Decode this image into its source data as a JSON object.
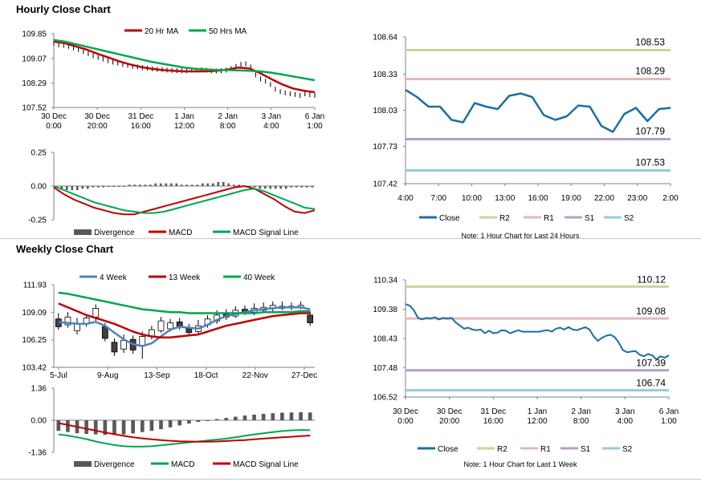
{
  "sections": {
    "hourly_title": "Hourly Close Chart",
    "weekly_title": "Weekly Close Chart"
  },
  "colors": {
    "ma_red": "#c00000",
    "ma_green": "#00a650",
    "ma_blue": "#4f81bd",
    "close_blue": "#1a6fa3",
    "r2": "#c4d79b",
    "r1": "#e6b8b7",
    "s1": "#b1a0c7",
    "s2": "#92cddc",
    "divergence": "#595959"
  },
  "chart_data": [
    {
      "id": "hourly_price",
      "type": "line",
      "title": "",
      "legend": [
        "20 Hr MA",
        "50 Hrs MA"
      ],
      "legend_colors": [
        "#c00000",
        "#00a650"
      ],
      "y_ticks": [
        "109.85",
        "109.07",
        "108.29",
        "107.52"
      ],
      "ylim": [
        107.52,
        109.85
      ],
      "x_ticks": [
        [
          "30 Dec",
          "0:00"
        ],
        [
          "30 Dec",
          "20:00"
        ],
        [
          "31 Dec",
          "16:00"
        ],
        [
          "1 Jan",
          "12:00"
        ],
        [
          "2 Jan",
          "8:00"
        ],
        [
          "3 Jan",
          "4:00"
        ],
        [
          "6 Jan",
          "1:00"
        ]
      ],
      "ohlc_close": [
        109.55,
        109.5,
        109.48,
        109.45,
        109.4,
        109.35,
        109.28,
        109.22,
        109.15,
        109.1,
        109.05,
        109.0,
        108.95,
        108.92,
        108.88,
        108.85,
        108.82,
        108.8,
        108.78,
        108.76,
        108.74,
        108.72,
        108.72,
        108.7,
        108.69,
        108.68,
        108.68,
        108.68,
        108.7,
        108.7,
        108.71,
        108.7,
        108.68,
        108.67,
        108.68,
        108.7,
        108.75,
        108.82,
        108.88,
        108.9,
        108.8,
        108.55,
        108.42,
        108.35,
        108.25,
        108.1,
        108.02,
        107.98,
        107.95,
        107.93,
        107.9,
        107.95,
        107.92,
        107.9
      ],
      "series": [
        {
          "name": "20 Hr MA",
          "values": [
            109.6,
            109.55,
            109.45,
            109.35,
            109.22,
            109.1,
            108.98,
            108.88,
            108.8,
            108.74,
            108.7,
            108.68,
            108.66,
            108.66,
            108.66,
            108.68,
            108.72,
            108.78,
            108.75,
            108.6,
            108.42,
            108.25,
            108.12,
            108.05,
            108.0
          ]
        },
        {
          "name": "50 Hrs MA",
          "values": [
            109.65,
            109.6,
            109.52,
            109.44,
            109.36,
            109.28,
            109.2,
            109.12,
            109.04,
            108.96,
            108.9,
            108.84,
            108.78,
            108.74,
            108.72,
            108.7,
            108.7,
            108.69,
            108.68,
            108.66,
            108.62,
            108.56,
            108.5,
            108.44,
            108.38
          ]
        }
      ]
    },
    {
      "id": "hourly_macd",
      "type": "bar",
      "legend": [
        "Divergence",
        "MACD",
        "MACD Signal Line"
      ],
      "legend_colors": [
        "#595959",
        "#c00000",
        "#00a650"
      ],
      "y_ticks": [
        "0.25",
        "0.00",
        "-0.25"
      ],
      "ylim": [
        -0.25,
        0.25
      ],
      "divergence": [
        0.0,
        -0.02,
        -0.03,
        -0.03,
        -0.03,
        -0.02,
        -0.02,
        -0.01,
        -0.01,
        -0.01,
        0.0,
        0.0,
        0.0,
        0.0,
        0.01,
        0.01,
        0.01,
        0.01,
        0.01,
        0.02,
        0.02,
        0.02,
        0.02,
        0.02,
        0.01,
        0.01,
        0.01,
        0.01,
        0.02,
        0.02,
        0.02,
        0.03,
        0.03,
        0.02,
        0.01,
        0.01,
        0.0,
        -0.01,
        -0.01,
        -0.02,
        -0.02,
        -0.02,
        -0.02,
        -0.02,
        -0.02,
        -0.01,
        -0.01,
        -0.01,
        -0.01,
        -0.01
      ],
      "series": [
        {
          "name": "MACD",
          "values": [
            -0.01,
            -0.06,
            -0.1,
            -0.13,
            -0.16,
            -0.18,
            -0.2,
            -0.21,
            -0.21,
            -0.19,
            -0.17,
            -0.15,
            -0.13,
            -0.11,
            -0.09,
            -0.07,
            -0.05,
            -0.03,
            -0.01,
            0.0,
            -0.02,
            -0.06,
            -0.1,
            -0.15,
            -0.19,
            -0.2,
            -0.18
          ]
        },
        {
          "name": "MACD Signal Line",
          "values": [
            0.0,
            -0.03,
            -0.06,
            -0.09,
            -0.12,
            -0.14,
            -0.16,
            -0.18,
            -0.19,
            -0.2,
            -0.2,
            -0.19,
            -0.17,
            -0.15,
            -0.13,
            -0.11,
            -0.09,
            -0.07,
            -0.05,
            -0.03,
            -0.02,
            -0.04,
            -0.07,
            -0.1,
            -0.13,
            -0.16,
            -0.17
          ]
        }
      ]
    },
    {
      "id": "hourly_24h",
      "type": "line",
      "y_ticks": [
        "108.64",
        "108.33",
        "108.03",
        "107.73",
        "107.42"
      ],
      "ylim": [
        107.42,
        108.64
      ],
      "x_ticks": [
        "4:00",
        "7:00",
        "10:00",
        "13:00",
        "16:00",
        "19:00",
        "22:00",
        "23:00",
        "2:00"
      ],
      "levels": [
        {
          "name": "R2",
          "value": 108.53,
          "label": "108.53"
        },
        {
          "name": "R1",
          "value": 108.29,
          "label": "108.29"
        },
        {
          "name": "S1",
          "value": 107.79,
          "label": "107.79"
        },
        {
          "name": "S2",
          "value": 107.53,
          "label": "107.53"
        }
      ],
      "series": [
        {
          "name": "Close",
          "values": [
            108.2,
            108.14,
            108.06,
            108.06,
            107.95,
            107.93,
            108.09,
            108.06,
            108.04,
            108.15,
            108.17,
            108.14,
            107.99,
            107.95,
            107.98,
            108.07,
            108.06,
            107.9,
            107.85,
            108.0,
            108.05,
            107.94,
            108.04,
            108.05
          ]
        }
      ],
      "legend": [
        "Close",
        "R2",
        "R1",
        "S1",
        "S2"
      ],
      "note": "Note: 1 Hour Chart for Last 24 Hours"
    },
    {
      "id": "weekly_price",
      "type": "line",
      "legend": [
        "4 Week",
        "13 Week",
        "40 Week"
      ],
      "legend_colors": [
        "#4f81bd",
        "#c00000",
        "#00a650"
      ],
      "y_ticks": [
        "111.93",
        "109.09",
        "106.25",
        "103.42"
      ],
      "ylim": [
        103.42,
        111.93
      ],
      "x_ticks": [
        "5-Jul",
        "9-Aug",
        "13-Sep",
        "18-Oct",
        "22-Nov",
        "27-Dec"
      ],
      "candles": [
        {
          "o": 108.4,
          "c": 107.6,
          "h": 109.0,
          "l": 107.3
        },
        {
          "o": 107.8,
          "c": 108.6,
          "h": 109.1,
          "l": 107.5
        },
        {
          "o": 107.2,
          "c": 107.9,
          "h": 108.5,
          "l": 106.8
        },
        {
          "o": 107.9,
          "c": 108.5,
          "h": 108.9,
          "l": 107.6
        },
        {
          "o": 108.6,
          "c": 109.5,
          "h": 109.9,
          "l": 108.2
        },
        {
          "o": 107.6,
          "c": 106.4,
          "h": 108.0,
          "l": 106.1
        },
        {
          "o": 106.0,
          "c": 105.0,
          "h": 106.4,
          "l": 104.6
        },
        {
          "o": 105.3,
          "c": 106.2,
          "h": 106.8,
          "l": 104.9
        },
        {
          "o": 106.3,
          "c": 105.2,
          "h": 106.7,
          "l": 104.8
        },
        {
          "o": 105.7,
          "c": 106.6,
          "h": 107.1,
          "l": 104.3
        },
        {
          "o": 106.6,
          "c": 107.3,
          "h": 107.7,
          "l": 106.3
        },
        {
          "o": 107.2,
          "c": 108.2,
          "h": 108.6,
          "l": 107.0
        },
        {
          "o": 107.4,
          "c": 108.0,
          "h": 108.4,
          "l": 107.1
        },
        {
          "o": 108.1,
          "c": 107.6,
          "h": 108.5,
          "l": 107.3
        },
        {
          "o": 107.4,
          "c": 107.0,
          "h": 107.9,
          "l": 106.6
        },
        {
          "o": 107.1,
          "c": 107.7,
          "h": 108.3,
          "l": 106.8
        },
        {
          "o": 107.8,
          "c": 108.4,
          "h": 108.8,
          "l": 107.5
        },
        {
          "o": 108.2,
          "c": 108.8,
          "h": 109.3,
          "l": 107.9
        },
        {
          "o": 108.9,
          "c": 108.6,
          "h": 109.4,
          "l": 108.3
        },
        {
          "o": 108.7,
          "c": 109.3,
          "h": 109.7,
          "l": 108.5
        },
        {
          "o": 109.4,
          "c": 109.1,
          "h": 109.8,
          "l": 108.8
        },
        {
          "o": 109.1,
          "c": 109.5,
          "h": 110.0,
          "l": 108.8
        },
        {
          "o": 109.3,
          "c": 109.6,
          "h": 110.1,
          "l": 109.0
        },
        {
          "o": 109.5,
          "c": 109.8,
          "h": 110.2,
          "l": 109.2
        },
        {
          "o": 109.7,
          "c": 109.5,
          "h": 110.2,
          "l": 109.3
        },
        {
          "o": 109.6,
          "c": 109.7,
          "h": 110.1,
          "l": 109.3
        },
        {
          "o": 109.6,
          "c": 109.8,
          "h": 110.2,
          "l": 109.4
        },
        {
          "o": 108.8,
          "c": 108.0,
          "h": 109.2,
          "l": 107.7
        }
      ],
      "series": [
        {
          "name": "4 Week",
          "values": [
            108.1,
            108.0,
            107.9,
            107.9,
            108.1,
            107.7,
            107.0,
            106.3,
            105.8,
            105.6,
            105.9,
            106.6,
            107.3,
            107.6,
            107.5,
            107.4,
            107.8,
            108.3,
            108.7,
            108.9,
            109.1,
            109.3,
            109.4,
            109.5,
            109.6,
            109.6,
            109.6,
            109.4
          ]
        },
        {
          "name": "13 Week",
          "values": [
            110.0,
            109.6,
            109.2,
            108.8,
            108.5,
            108.2,
            107.9,
            107.5,
            107.1,
            106.8,
            106.6,
            106.5,
            106.5,
            106.6,
            106.7,
            106.8,
            107.1,
            107.4,
            107.7,
            107.9,
            108.1,
            108.3,
            108.5,
            108.7,
            108.8,
            108.9,
            109.0,
            109.0
          ]
        },
        {
          "name": "40 Week",
          "values": [
            111.1,
            111.0,
            110.8,
            110.6,
            110.4,
            110.2,
            110.0,
            109.8,
            109.6,
            109.4,
            109.3,
            109.2,
            109.1,
            109.1,
            109.0,
            109.0,
            109.0,
            109.0,
            109.0,
            109.0,
            109.0,
            109.0,
            109.1,
            109.1,
            109.1,
            109.1,
            109.2,
            109.2
          ]
        }
      ]
    },
    {
      "id": "weekly_macd",
      "type": "bar",
      "legend": [
        "Divergence",
        "MACD",
        "MACD Signal Line"
      ],
      "legend_colors": [
        "#595959",
        "#00a650",
        "#c00000"
      ],
      "y_ticks": [
        "1.36",
        "0.00",
        "-1.36"
      ],
      "ylim": [
        -1.36,
        1.36
      ],
      "divergence": [
        -0.45,
        -0.5,
        -0.55,
        -0.58,
        -0.6,
        -0.62,
        -0.62,
        -0.6,
        -0.56,
        -0.5,
        -0.45,
        -0.38,
        -0.3,
        -0.22,
        -0.14,
        -0.07,
        -0.02,
        0.05,
        0.1,
        0.15,
        0.2,
        0.24,
        0.27,
        0.3,
        0.32,
        0.33,
        0.34,
        0.33
      ],
      "series": [
        {
          "name": "MACD",
          "values": [
            -0.6,
            -0.65,
            -0.72,
            -0.8,
            -0.9,
            -0.98,
            -1.05,
            -1.1,
            -1.12,
            -1.12,
            -1.1,
            -1.06,
            -1.02,
            -0.98,
            -0.94,
            -0.9,
            -0.86,
            -0.82,
            -0.78,
            -0.72,
            -0.66,
            -0.6,
            -0.55,
            -0.5,
            -0.46,
            -0.43,
            -0.41,
            -0.42
          ]
        },
        {
          "name": "MACD Signal Line",
          "values": [
            -0.12,
            -0.2,
            -0.28,
            -0.36,
            -0.44,
            -0.52,
            -0.59,
            -0.66,
            -0.72,
            -0.77,
            -0.81,
            -0.84,
            -0.87,
            -0.89,
            -0.9,
            -0.91,
            -0.91,
            -0.9,
            -0.88,
            -0.86,
            -0.84,
            -0.81,
            -0.78,
            -0.75,
            -0.72,
            -0.7,
            -0.67,
            -0.65
          ]
        }
      ]
    },
    {
      "id": "weekly_1h",
      "type": "line",
      "y_ticks": [
        "110.34",
        "109.38",
        "108.43",
        "107.48",
        "106.52"
      ],
      "ylim": [
        106.52,
        110.34
      ],
      "x_ticks": [
        [
          "30 Dec",
          "0:00"
        ],
        [
          "30 Dec",
          "20:00"
        ],
        [
          "31 Dec",
          "16:00"
        ],
        [
          "1 Jan",
          "12:00"
        ],
        [
          "2 Jan",
          "8:00"
        ],
        [
          "3 Jan",
          "4:00"
        ],
        [
          "6 Jan",
          "1:00"
        ]
      ],
      "levels": [
        {
          "name": "R2",
          "value": 110.12,
          "label": "110.12"
        },
        {
          "name": "R1",
          "value": 109.08,
          "label": "109.08"
        },
        {
          "name": "S1",
          "value": 107.39,
          "label": "107.39"
        },
        {
          "name": "S2",
          "value": 106.74,
          "label": "106.74"
        }
      ],
      "series": [
        {
          "name": "Close",
          "values": [
            109.55,
            109.5,
            109.35,
            109.1,
            109.05,
            109.1,
            109.08,
            109.12,
            109.05,
            109.1,
            109.08,
            109.1,
            108.95,
            108.85,
            108.75,
            108.78,
            108.72,
            108.7,
            108.72,
            108.6,
            108.68,
            108.6,
            108.62,
            108.7,
            108.68,
            108.6,
            108.65,
            108.7,
            108.65,
            108.65,
            108.65,
            108.65,
            108.65,
            108.68,
            108.7,
            108.65,
            108.75,
            108.78,
            108.72,
            108.8,
            108.72,
            108.7,
            108.75,
            108.8,
            108.72,
            108.5,
            108.35,
            108.45,
            108.52,
            108.55,
            108.48,
            108.3,
            108.05,
            107.98,
            108.0,
            108.02,
            107.9,
            107.85,
            107.92,
            107.88,
            107.75,
            107.85,
            107.8,
            107.88
          ]
        }
      ],
      "legend": [
        "Close",
        "R2",
        "R1",
        "S1",
        "S2"
      ],
      "note": "Note: 1 Hour Chart for Last 1 Week"
    }
  ]
}
